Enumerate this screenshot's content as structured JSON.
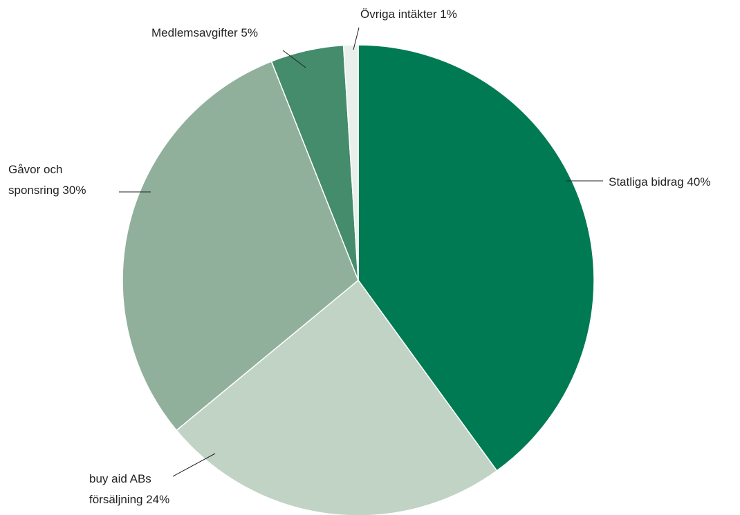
{
  "chart_data": {
    "type": "pie",
    "slices": [
      {
        "label": [
          "Statliga bidrag  40%"
        ],
        "value": 40,
        "color": "#007a52"
      },
      {
        "label": [
          "buy aid ABs",
          "försäljning  24%"
        ],
        "value": 24,
        "color": "#c0d3c5"
      },
      {
        "label": [
          "Gåvor och",
          "sponsring  30%"
        ],
        "value": 30,
        "color": "#90b09c"
      },
      {
        "label": [
          "Medlemsavgifter 5%"
        ],
        "value": 5,
        "color": "#448c6b"
      },
      {
        "label": [
          "Övriga intäkter  1%"
        ],
        "value": 1,
        "color": "#e9efea"
      }
    ]
  }
}
